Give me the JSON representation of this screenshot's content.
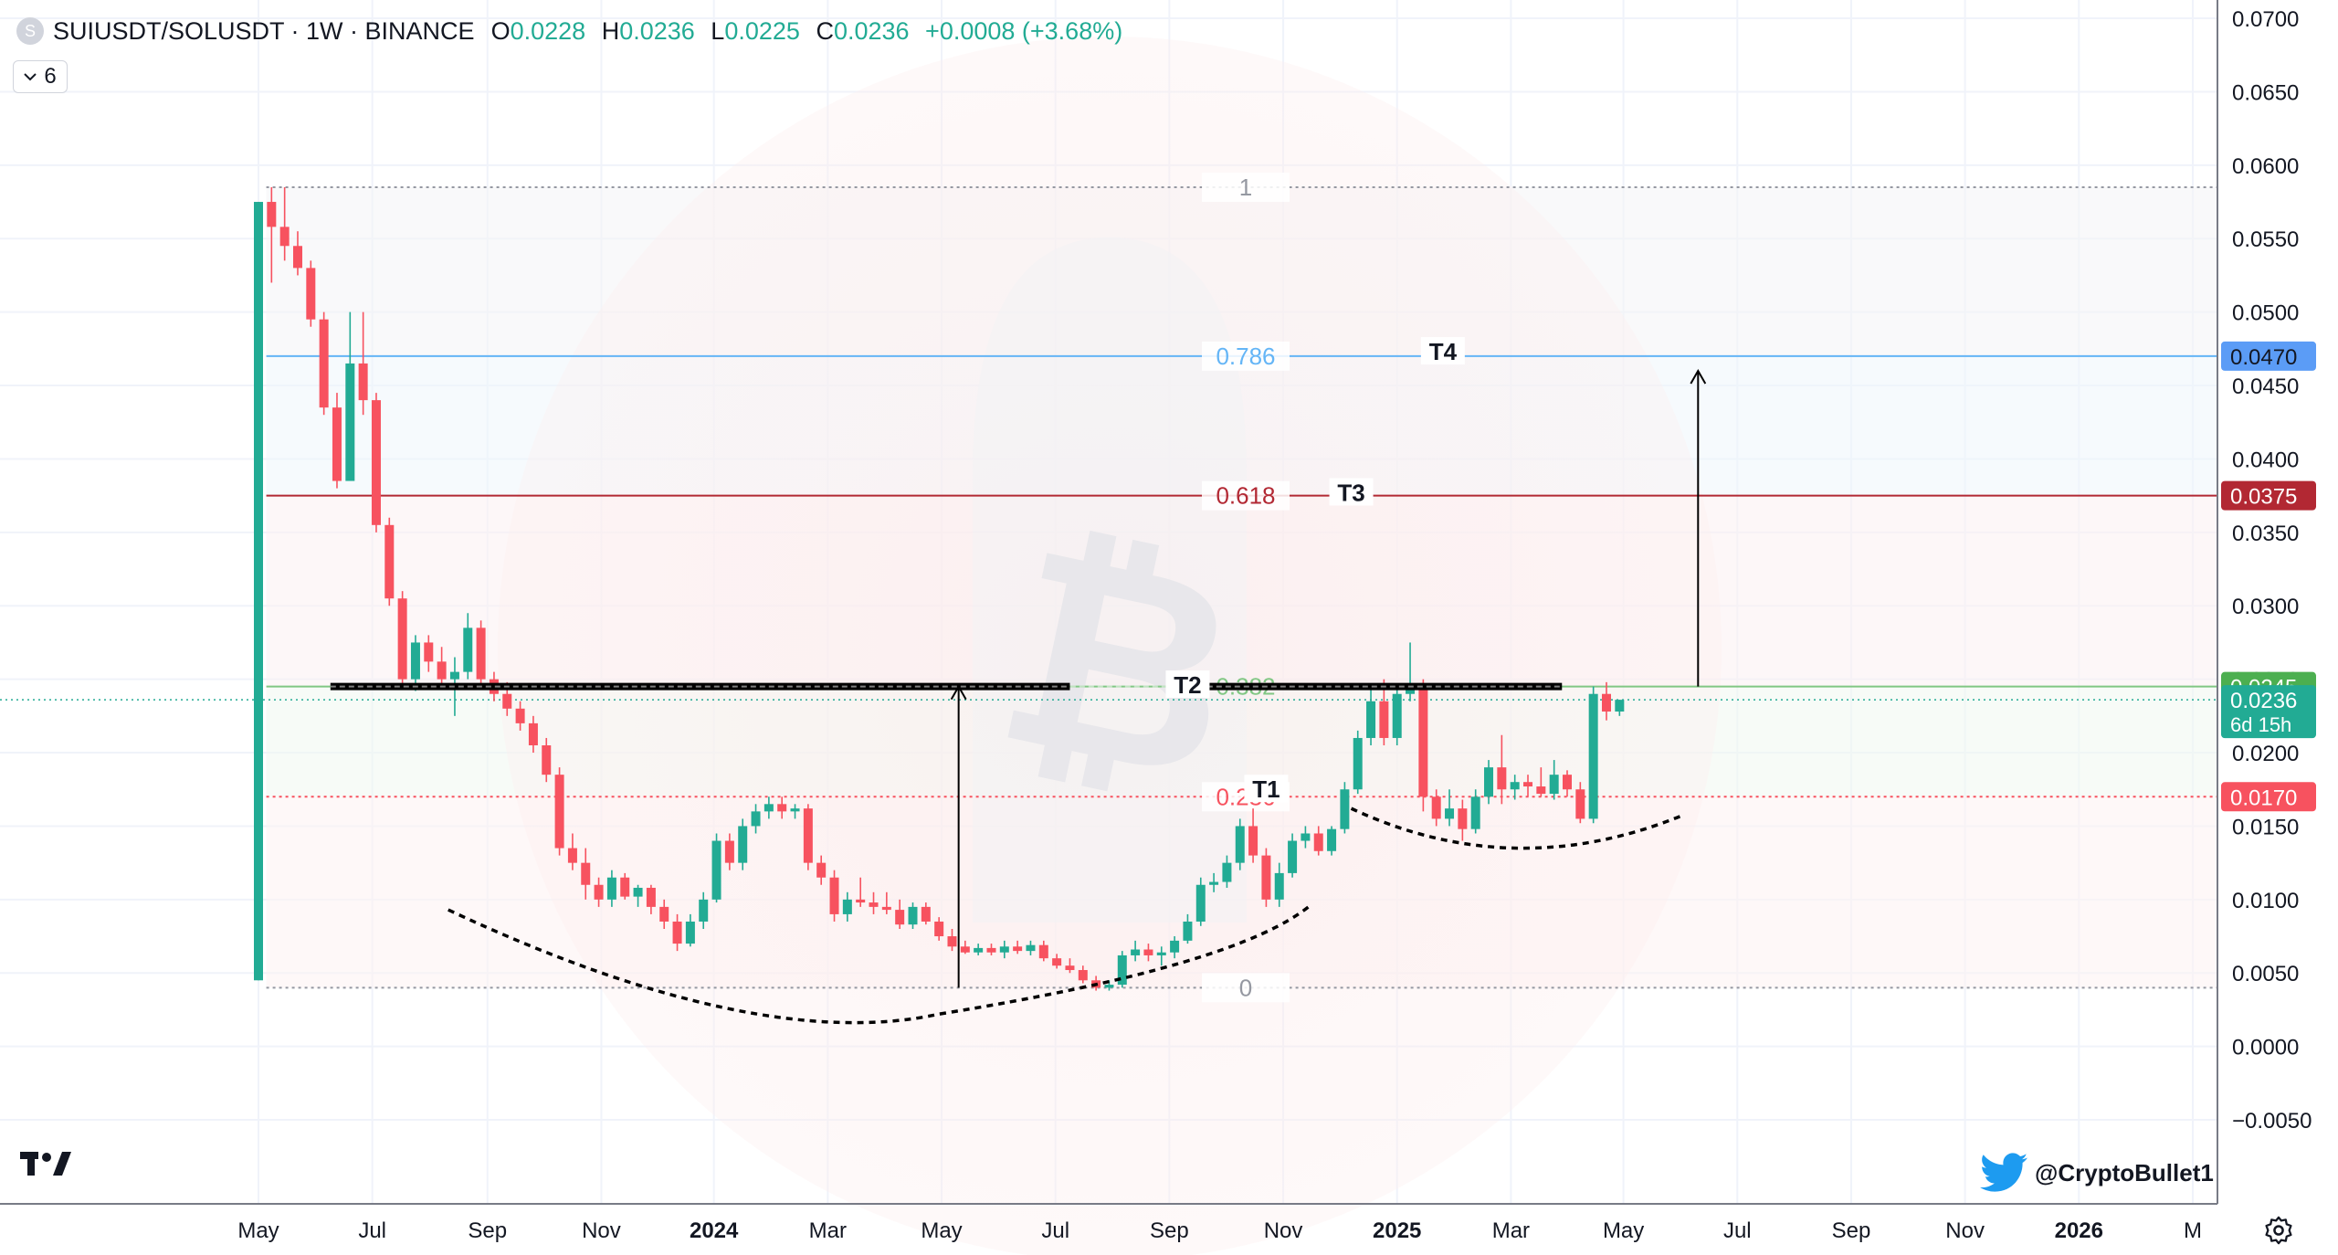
{
  "header": {
    "symbol": "SUIUSDT/SOLUSDT · 1W · BINANCE",
    "coin_icon": "S",
    "o_label": "O",
    "o_value": "0.0228",
    "h_label": "H",
    "h_value": "0.0236",
    "l_label": "L",
    "l_value": "0.0225",
    "c_label": "C",
    "c_value": "0.0236",
    "change": "+0.0008 (+3.68%)",
    "indicator_toggle": "6"
  },
  "colors": {
    "up": "#22ab94",
    "down": "#f7525f",
    "grid": "#f0f3fa"
  },
  "credit": "@CryptoBullet1",
  "icons": [
    "tradingview-logo-icon",
    "twitter-icon",
    "settings-icon",
    "chevron-down-icon",
    "bitcoin-watermark-icon"
  ],
  "chart_data": {
    "type": "candlestick",
    "title": "SUIUSDT/SOLUSDT · 1W · BINANCE",
    "ylim": [
      -0.0055,
      0.0705
    ],
    "y_ticks": [
      "0.0700",
      "0.0650",
      "0.0600",
      "0.0550",
      "0.0500",
      "0.0450",
      "0.0400",
      "0.0350",
      "0.0300",
      "0.0250",
      "0.0200",
      "0.0150",
      "0.0100",
      "0.0050",
      "0.0000",
      "−0.0050"
    ],
    "y_tick_values": [
      0.07,
      0.065,
      0.06,
      0.055,
      0.05,
      0.045,
      0.04,
      0.035,
      0.03,
      0.025,
      0.02,
      0.015,
      0.01,
      0.005,
      0,
      -0.005
    ],
    "x_ticks": [
      {
        "label": "May",
        "week": 0,
        "bold": false
      },
      {
        "label": "Jul",
        "week": 8.7,
        "bold": false
      },
      {
        "label": "Sep",
        "week": 17.5,
        "bold": false
      },
      {
        "label": "Nov",
        "week": 26.2,
        "bold": false
      },
      {
        "label": "2024",
        "week": 34.8,
        "bold": true
      },
      {
        "label": "Mar",
        "week": 43.5,
        "bold": false
      },
      {
        "label": "May",
        "week": 52.2,
        "bold": false
      },
      {
        "label": "Jul",
        "week": 60.9,
        "bold": false
      },
      {
        "label": "Sep",
        "week": 69.6,
        "bold": false
      },
      {
        "label": "Nov",
        "week": 78.3,
        "bold": false
      },
      {
        "label": "2025",
        "week": 87.0,
        "bold": true
      },
      {
        "label": "Mar",
        "week": 95.7,
        "bold": false
      },
      {
        "label": "May",
        "week": 104.3,
        "bold": false
      },
      {
        "label": "Jul",
        "week": 113.0,
        "bold": false
      },
      {
        "label": "Sep",
        "week": 121.7,
        "bold": false
      },
      {
        "label": "Nov",
        "week": 130.4,
        "bold": false
      },
      {
        "label": "2026",
        "week": 139.1,
        "bold": true
      },
      {
        "label": "M",
        "week": 147.8,
        "bold": false
      }
    ],
    "ohlc": [
      [
        0.0045,
        0.0575,
        0.0045,
        0.0575
      ],
      [
        0.0575,
        0.0585,
        0.052,
        0.0558
      ],
      [
        0.0558,
        0.0585,
        0.0535,
        0.0545
      ],
      [
        0.0545,
        0.0555,
        0.0525,
        0.053
      ],
      [
        0.053,
        0.0535,
        0.049,
        0.0495
      ],
      [
        0.0495,
        0.05,
        0.043,
        0.0435
      ],
      [
        0.0435,
        0.0445,
        0.038,
        0.0385
      ],
      [
        0.0385,
        0.05,
        0.0385,
        0.0465
      ],
      [
        0.0465,
        0.05,
        0.043,
        0.044
      ],
      [
        0.044,
        0.0445,
        0.035,
        0.0355
      ],
      [
        0.0355,
        0.036,
        0.03,
        0.0305
      ],
      [
        0.0305,
        0.031,
        0.0245,
        0.025
      ],
      [
        0.025,
        0.028,
        0.0242,
        0.0275
      ],
      [
        0.0275,
        0.028,
        0.0255,
        0.0262
      ],
      [
        0.0262,
        0.0272,
        0.0245,
        0.025
      ],
      [
        0.025,
        0.0265,
        0.0225,
        0.0255
      ],
      [
        0.0255,
        0.0295,
        0.025,
        0.0285
      ],
      [
        0.0285,
        0.029,
        0.0245,
        0.025
      ],
      [
        0.025,
        0.0255,
        0.0235,
        0.024
      ],
      [
        0.024,
        0.0248,
        0.0225,
        0.023
      ],
      [
        0.023,
        0.0235,
        0.0215,
        0.022
      ],
      [
        0.022,
        0.0225,
        0.02,
        0.0205
      ],
      [
        0.0205,
        0.021,
        0.018,
        0.0185
      ],
      [
        0.0185,
        0.019,
        0.013,
        0.0135
      ],
      [
        0.0135,
        0.0145,
        0.012,
        0.0125
      ],
      [
        0.0125,
        0.0135,
        0.01,
        0.011
      ],
      [
        0.011,
        0.0115,
        0.0095,
        0.01
      ],
      [
        0.01,
        0.012,
        0.0095,
        0.0115
      ],
      [
        0.0115,
        0.0118,
        0.01,
        0.0102
      ],
      [
        0.0102,
        0.011,
        0.0095,
        0.0108
      ],
      [
        0.0108,
        0.011,
        0.009,
        0.0095
      ],
      [
        0.0095,
        0.01,
        0.008,
        0.0085
      ],
      [
        0.0085,
        0.009,
        0.0065,
        0.007
      ],
      [
        0.007,
        0.009,
        0.0068,
        0.0085
      ],
      [
        0.0085,
        0.0105,
        0.008,
        0.01
      ],
      [
        0.01,
        0.0145,
        0.0098,
        0.014
      ],
      [
        0.014,
        0.0145,
        0.012,
        0.0125
      ],
      [
        0.0125,
        0.0155,
        0.012,
        0.015
      ],
      [
        0.015,
        0.0165,
        0.0145,
        0.016
      ],
      [
        0.016,
        0.017,
        0.0155,
        0.0165
      ],
      [
        0.0165,
        0.017,
        0.0155,
        0.016
      ],
      [
        0.016,
        0.0165,
        0.0155,
        0.0162
      ],
      [
        0.0162,
        0.0165,
        0.012,
        0.0125
      ],
      [
        0.0125,
        0.013,
        0.011,
        0.0115
      ],
      [
        0.0115,
        0.012,
        0.0085,
        0.009
      ],
      [
        0.009,
        0.0105,
        0.0085,
        0.01
      ],
      [
        0.01,
        0.0115,
        0.0095,
        0.0098
      ],
      [
        0.0098,
        0.0105,
        0.009,
        0.0095
      ],
      [
        0.0095,
        0.0105,
        0.009,
        0.0093
      ],
      [
        0.0093,
        0.01,
        0.008,
        0.0083
      ],
      [
        0.0083,
        0.0098,
        0.008,
        0.0095
      ],
      [
        0.0095,
        0.0098,
        0.0083,
        0.0085
      ],
      [
        0.0085,
        0.0088,
        0.0072,
        0.0075
      ],
      [
        0.0075,
        0.008,
        0.0065,
        0.0068
      ],
      [
        0.0068,
        0.0072,
        0.0063,
        0.0064
      ],
      [
        0.0064,
        0.007,
        0.0062,
        0.0067
      ],
      [
        0.0067,
        0.007,
        0.0062,
        0.0064
      ],
      [
        0.0064,
        0.0072,
        0.006,
        0.0068
      ],
      [
        0.0068,
        0.0072,
        0.0063,
        0.0065
      ],
      [
        0.0065,
        0.0072,
        0.0062,
        0.0069
      ],
      [
        0.0069,
        0.0072,
        0.0058,
        0.006
      ],
      [
        0.006,
        0.0063,
        0.0053,
        0.0055
      ],
      [
        0.0055,
        0.006,
        0.005,
        0.0052
      ],
      [
        0.0052,
        0.0055,
        0.0043,
        0.0045
      ],
      [
        0.0045,
        0.0048,
        0.0038,
        0.004
      ],
      [
        0.004,
        0.0045,
        0.0038,
        0.0042
      ],
      [
        0.0042,
        0.0065,
        0.004,
        0.0062
      ],
      [
        0.0062,
        0.0072,
        0.0058,
        0.0066
      ],
      [
        0.0066,
        0.007,
        0.0058,
        0.0062
      ],
      [
        0.0062,
        0.0068,
        0.0055,
        0.0064
      ],
      [
        0.0064,
        0.0075,
        0.006,
        0.0072
      ],
      [
        0.0072,
        0.009,
        0.007,
        0.0085
      ],
      [
        0.0085,
        0.0115,
        0.0082,
        0.011
      ],
      [
        0.011,
        0.0118,
        0.0105,
        0.0112
      ],
      [
        0.0112,
        0.013,
        0.0108,
        0.0125
      ],
      [
        0.0125,
        0.0155,
        0.012,
        0.015
      ],
      [
        0.015,
        0.0162,
        0.0125,
        0.013
      ],
      [
        0.013,
        0.0135,
        0.0095,
        0.01
      ],
      [
        0.01,
        0.0125,
        0.0095,
        0.0118
      ],
      [
        0.0118,
        0.0145,
        0.0115,
        0.014
      ],
      [
        0.014,
        0.015,
        0.0135,
        0.0145
      ],
      [
        0.0145,
        0.015,
        0.013,
        0.0133
      ],
      [
        0.0133,
        0.015,
        0.013,
        0.0148
      ],
      [
        0.0148,
        0.018,
        0.0145,
        0.0175
      ],
      [
        0.0175,
        0.0215,
        0.0172,
        0.021
      ],
      [
        0.021,
        0.0245,
        0.0205,
        0.0235
      ],
      [
        0.0235,
        0.025,
        0.0205,
        0.021
      ],
      [
        0.021,
        0.0245,
        0.0205,
        0.024
      ],
      [
        0.024,
        0.0275,
        0.0235,
        0.0245
      ],
      [
        0.0245,
        0.025,
        0.016,
        0.017
      ],
      [
        0.017,
        0.0175,
        0.015,
        0.0155
      ],
      [
        0.0155,
        0.0175,
        0.015,
        0.0162
      ],
      [
        0.0162,
        0.0168,
        0.014,
        0.0148
      ],
      [
        0.0148,
        0.0175,
        0.0145,
        0.017
      ],
      [
        0.017,
        0.0195,
        0.0165,
        0.019
      ],
      [
        0.019,
        0.0212,
        0.0165,
        0.0175
      ],
      [
        0.0175,
        0.0185,
        0.0168,
        0.018
      ],
      [
        0.018,
        0.0185,
        0.017,
        0.0177
      ],
      [
        0.0177,
        0.019,
        0.017,
        0.0172
      ],
      [
        0.0172,
        0.0195,
        0.0168,
        0.0185
      ],
      [
        0.0185,
        0.0188,
        0.017,
        0.0175
      ],
      [
        0.0175,
        0.018,
        0.0152,
        0.0155
      ],
      [
        0.0155,
        0.0245,
        0.0152,
        0.024
      ],
      [
        0.024,
        0.0248,
        0.0222,
        0.0228
      ],
      [
        0.0228,
        0.0236,
        0.0225,
        0.0236
      ]
    ],
    "fib": [
      {
        "label": "1",
        "value": 0.0585,
        "color": "#9598a1",
        "dash": true
      },
      {
        "label": "0.786",
        "value": 0.047,
        "color": "#64b5f6",
        "dash": false
      },
      {
        "label": "0.618",
        "value": 0.0375,
        "color": "#b22833",
        "dash": false
      },
      {
        "label": "0.382",
        "value": 0.0245,
        "color": "#81c784",
        "dash": false
      },
      {
        "label": "0.236",
        "value": 0.017,
        "color": "#f7525f",
        "dash": true
      },
      {
        "label": "0",
        "value": 0.004,
        "color": "#9598a1",
        "dash": true
      }
    ],
    "targets": [
      {
        "label": "T1",
        "value": 0.0175
      },
      {
        "label": "T2",
        "value": 0.0246
      },
      {
        "label": "T3",
        "value": 0.0377
      },
      {
        "label": "T4",
        "value": 0.0473
      }
    ],
    "resistance_level": 0.0245,
    "price_labels": [
      {
        "value": 0.047,
        "text": "0.0470",
        "bg": "#5b9cf6",
        "fg": "#131722"
      },
      {
        "value": 0.0375,
        "text": "0.0375",
        "bg": "#b22833",
        "fg": "#ffffff"
      },
      {
        "value": 0.0245,
        "text": "0.0245",
        "bg": "#4caf50",
        "fg": "#ffffff"
      },
      {
        "value": 0.0236,
        "text": "0.0236",
        "sub": "6d 15h",
        "bg": "#22ab94",
        "fg": "#ffffff"
      },
      {
        "value": 0.017,
        "text": "0.0170",
        "bg": "#f7525f",
        "fg": "#ffffff"
      }
    ]
  }
}
